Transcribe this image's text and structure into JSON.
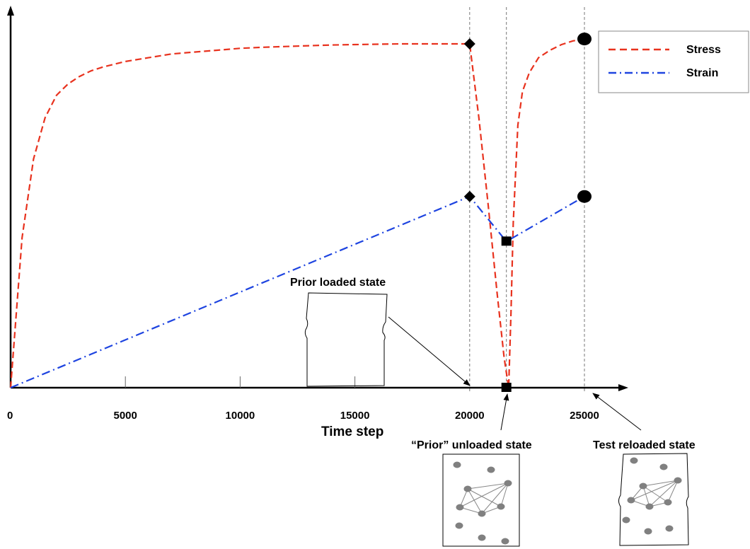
{
  "chart_data": {
    "type": "line",
    "xlabel": "Time step",
    "ylabel": "",
    "xlim": [
      0,
      26000
    ],
    "x_ticks": [
      0,
      5000,
      10000,
      15000,
      20000,
      25000
    ],
    "x_tick_labels": [
      "0",
      "5000",
      "10000",
      "15000",
      "20000",
      "25000"
    ],
    "y_range": [
      0,
      1
    ],
    "grid": false,
    "legend_position": "top-right",
    "series": [
      {
        "name": "Stress",
        "color": "#e8321e",
        "style": "dashed",
        "x": [
          0,
          500,
          1000,
          1500,
          2000,
          2500,
          3000,
          3500,
          4000,
          5000,
          6000,
          7000,
          8000,
          9000,
          10000,
          11000,
          12000,
          13000,
          14000,
          15000,
          16000,
          17000,
          18000,
          19000,
          20000,
          20400,
          20800,
          21200,
          21500,
          21700,
          21800,
          21900,
          22100,
          22300,
          22600,
          23000,
          23500,
          24000,
          24500,
          25000
        ],
        "values": [
          0,
          0.4,
          0.61,
          0.72,
          0.78,
          0.81,
          0.83,
          0.845,
          0.855,
          0.87,
          0.88,
          0.89,
          0.895,
          0.9,
          0.905,
          0.908,
          0.91,
          0.912,
          0.914,
          0.915,
          0.916,
          0.917,
          0.917,
          0.917,
          0.917,
          0.72,
          0.49,
          0.25,
          0.08,
          0.0,
          0.2,
          0.44,
          0.7,
          0.79,
          0.84,
          0.88,
          0.9,
          0.915,
          0.925,
          0.93
        ]
      },
      {
        "name": "Strain",
        "color": "#1e44e0",
        "style": "dashdot",
        "x": [
          0,
          20000,
          21600,
          25000
        ],
        "values": [
          0,
          0.51,
          0.39,
          0.51
        ]
      }
    ],
    "markers": [
      {
        "series": "Stress",
        "shape": "diamond",
        "x": 20000,
        "y": 0.917
      },
      {
        "series": "Stress",
        "shape": "circle",
        "x": 25000,
        "y": 0.93
      },
      {
        "series": "Strain",
        "shape": "diamond",
        "x": 20000,
        "y": 0.51
      },
      {
        "series": "Strain",
        "shape": "square",
        "x": 21600,
        "y": 0.39
      },
      {
        "series": "Strain",
        "shape": "circle",
        "x": 25000,
        "y": 0.51
      },
      {
        "series": "Stress",
        "shape": "square",
        "x": 21600,
        "y": 0.0
      }
    ],
    "vlines": [
      20000,
      21600,
      25000
    ],
    "annotations": [
      {
        "text": "Prior loaded state",
        "points_to": 20000
      },
      {
        "text": "“Prior” unloaded state",
        "points_to": 21600
      },
      {
        "text": "Test  reloaded state",
        "points_to": 25000
      }
    ]
  }
}
